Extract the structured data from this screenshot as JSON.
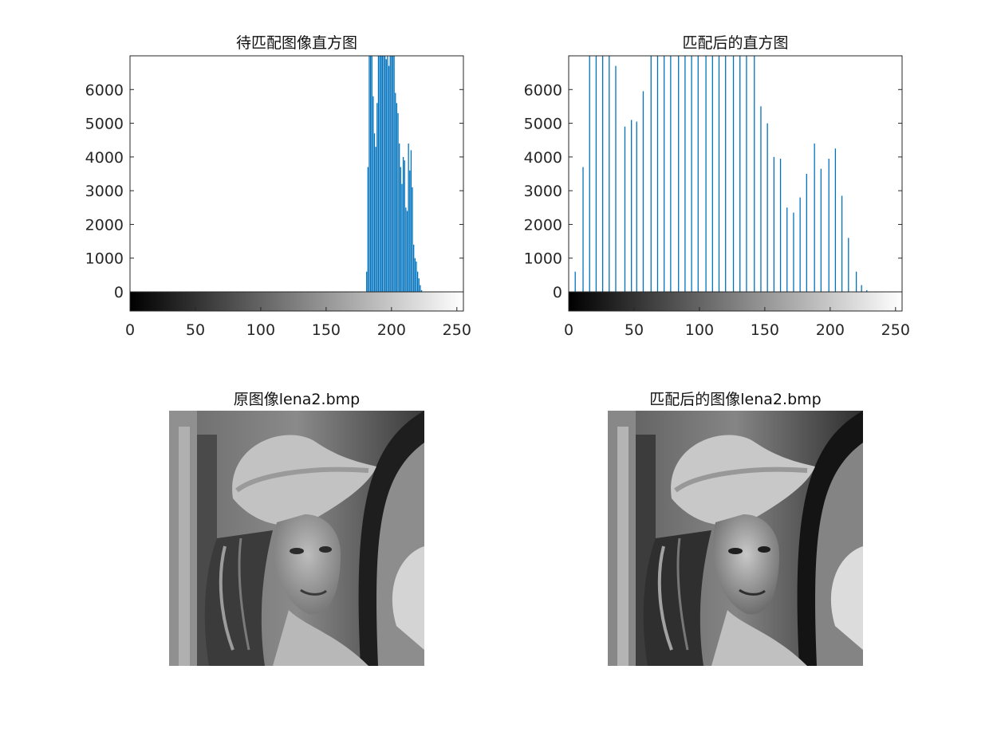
{
  "chart_data": [
    {
      "type": "bar",
      "title": "待匹配图像直方图",
      "xlim": [
        0,
        255
      ],
      "ylim": [
        0,
        7000
      ],
      "xticks": [
        0,
        50,
        100,
        150,
        200,
        250
      ],
      "yticks": [
        0,
        1000,
        2000,
        3000,
        4000,
        5000,
        6000
      ],
      "xtick_labels": [
        "0",
        "50",
        "100",
        "150",
        "200",
        "250"
      ],
      "ytick_labels": [
        "0",
        "1000",
        "2000",
        "3000",
        "4000",
        "5000",
        "6000"
      ],
      "colorbar": "gray",
      "x": [
        181,
        182,
        183,
        184,
        185,
        186,
        187,
        188,
        189,
        190,
        191,
        192,
        193,
        194,
        195,
        196,
        197,
        198,
        199,
        200,
        201,
        202,
        203,
        204,
        205,
        206,
        207,
        208,
        209,
        210,
        211,
        212,
        213,
        214,
        215,
        216,
        217,
        218,
        219,
        220,
        221,
        222,
        223
      ],
      "values": [
        600,
        3700,
        7000,
        7000,
        7000,
        5800,
        4700,
        4300,
        5600,
        7000,
        7000,
        7000,
        7000,
        7000,
        7000,
        6900,
        7000,
        6700,
        7000,
        7000,
        7000,
        7000,
        5900,
        5600,
        5300,
        4400,
        3700,
        3200,
        4000,
        3900,
        2500,
        2400,
        4400,
        3600,
        4200,
        3100,
        1400,
        1000,
        900,
        600,
        400,
        200,
        50
      ],
      "grid": false
    },
    {
      "type": "bar",
      "title": "匹配后的直方图",
      "xlim": [
        0,
        255
      ],
      "ylim": [
        0,
        7000
      ],
      "xticks": [
        0,
        50,
        100,
        150,
        200,
        250
      ],
      "yticks": [
        0,
        1000,
        2000,
        3000,
        4000,
        5000,
        6000
      ],
      "xtick_labels": [
        "0",
        "50",
        "100",
        "150",
        "200",
        "250"
      ],
      "ytick_labels": [
        "0",
        "1000",
        "2000",
        "3000",
        "4000",
        "5000",
        "6000"
      ],
      "colorbar": "gray",
      "x": [
        5,
        11,
        16,
        21,
        26,
        31,
        36,
        43,
        48,
        52,
        57,
        63,
        68,
        73,
        78,
        84,
        89,
        94,
        99,
        105,
        110,
        115,
        120,
        126,
        131,
        136,
        142,
        147,
        152,
        157,
        162,
        167,
        172,
        177,
        182,
        188,
        193,
        199,
        204,
        209,
        214,
        220,
        224,
        228
      ],
      "values": [
        600,
        3700,
        7000,
        7000,
        7000,
        7000,
        6700,
        4900,
        5100,
        5050,
        5950,
        7000,
        7000,
        7000,
        7000,
        7000,
        7000,
        7000,
        7000,
        7000,
        7000,
        7000,
        7000,
        7000,
        7000,
        7000,
        7000,
        5500,
        5000,
        4000,
        3950,
        2500,
        2350,
        2800,
        3500,
        4400,
        3650,
        3950,
        4250,
        2850,
        1600,
        600,
        200,
        50
      ],
      "grid": false
    }
  ],
  "images": {
    "left_title": "原图像lena2.bmp",
    "right_title": "匹配后的图像lena2.bmp"
  }
}
